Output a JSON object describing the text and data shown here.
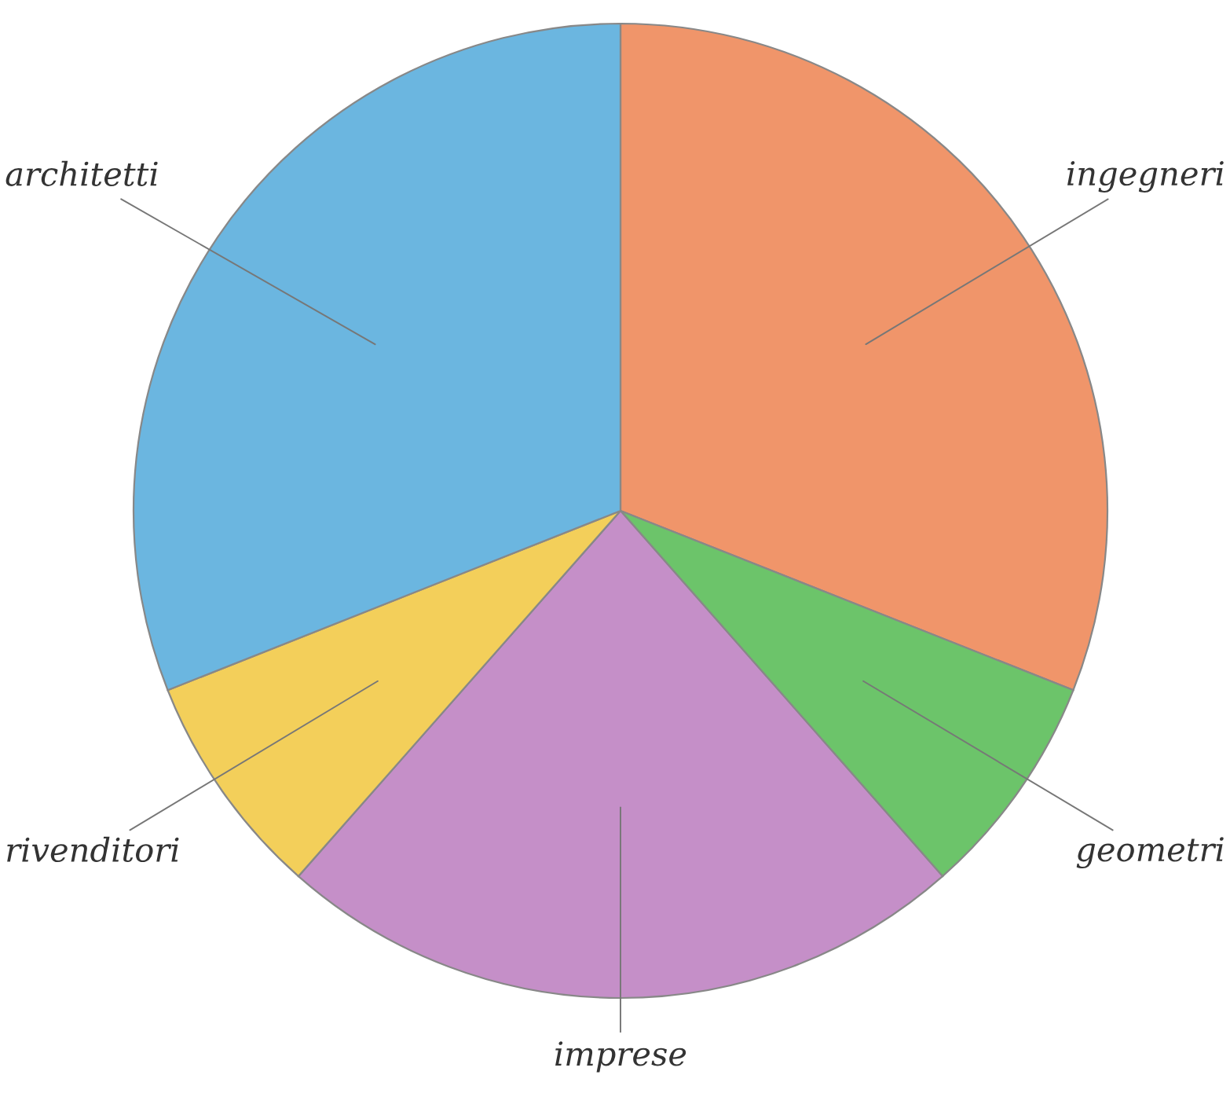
{
  "chart_data": {
    "type": "pie",
    "categories": [
      "ingegneri",
      "geometri",
      "imprese",
      "rivenditori",
      "architetti"
    ],
    "values": [
      31,
      7.5,
      23,
      7.5,
      31
    ],
    "colors": [
      "#f0956a",
      "#6cc46a",
      "#c58fc8",
      "#f3cf5a",
      "#6bb6e0"
    ],
    "legend": false
  }
}
